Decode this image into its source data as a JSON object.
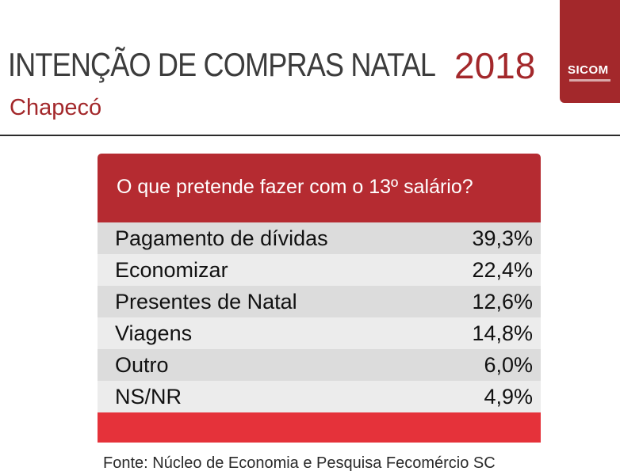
{
  "header": {
    "title": "INTENÇÃO DE COMPRAS NATAL",
    "year": "2018",
    "subtitle": "Chapecó",
    "logo_text": "SICOM"
  },
  "chart_data": {
    "type": "table",
    "title": "O que pretende fazer com o 13º  salário?",
    "rows": [
      {
        "label": "Pagamento de dívidas",
        "value": "39,3%"
      },
      {
        "label": "Economizar",
        "value": "22,4%"
      },
      {
        "label": "Presentes de Natal",
        "value": "12,6%"
      },
      {
        "label": "Viagens",
        "value": "14,8%"
      },
      {
        "label": "Outro",
        "value": "6,0%"
      },
      {
        "label": "NS/NR",
        "value": "4,9%"
      }
    ]
  },
  "footer": {
    "source": "Fonte: Núcleo de Economia e Pesquisa Fecomércio SC"
  },
  "colors": {
    "accent": "#a3282b",
    "header_red": "#b52b31",
    "footer_red": "#e5323a"
  }
}
